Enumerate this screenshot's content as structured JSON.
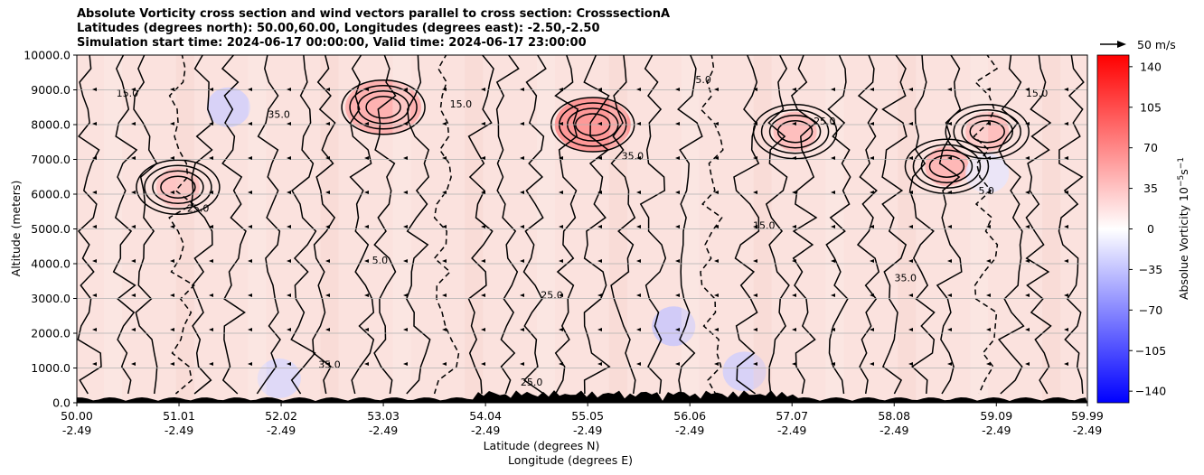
{
  "chart_data": {
    "type": "heatmap",
    "title": [
      "Absolute Vorticity cross section and wind vectors parallel to cross section: CrosssectionA",
      "Latitudes (degrees north): 50.00,60.00, Longitudes (degrees east): -2.50,-2.50",
      "Simulation start time: 2024-06-17 00:00:00, Valid time: 2024-06-17 23:00:00"
    ],
    "ylabel": "Altitude (meters)",
    "xlabel": [
      "Latitude (degrees N)",
      "Longitude (degrees E)"
    ],
    "ylim": [
      0,
      10000
    ],
    "yticks": [
      "0.0",
      "1000.0",
      "2000.0",
      "3000.0",
      "4000.0",
      "5000.0",
      "6000.0",
      "7000.0",
      "8000.0",
      "9000.0",
      "10000.0"
    ],
    "xlim": [
      50.0,
      59.99
    ],
    "xticks": [
      {
        "lat": "50.00",
        "lon": "-2.49"
      },
      {
        "lat": "51.01",
        "lon": "-2.49"
      },
      {
        "lat": "52.02",
        "lon": "-2.49"
      },
      {
        "lat": "53.03",
        "lon": "-2.49"
      },
      {
        "lat": "54.04",
        "lon": "-2.49"
      },
      {
        "lat": "55.05",
        "lon": "-2.49"
      },
      {
        "lat": "56.06",
        "lon": "-2.49"
      },
      {
        "lat": "57.07",
        "lon": "-2.49"
      },
      {
        "lat": "58.08",
        "lon": "-2.49"
      },
      {
        "lat": "59.09",
        "lon": "-2.49"
      },
      {
        "lat": "59.99",
        "lon": "-2.49"
      }
    ],
    "grid": "horizontal",
    "colorbar": {
      "label": "Absolue Vorticity 10",
      "label_units": "−5",
      "label_suffix": "s",
      "label_suffix_exp": "−1",
      "range": [
        -150,
        150
      ],
      "ticks": [
        "140",
        "105",
        "70",
        "35",
        "0",
        "−35",
        "−70",
        "−105",
        "−140"
      ],
      "colors": [
        "#0000ff",
        "#ffffff",
        "#ff0000"
      ]
    },
    "quiver_key": "50 m/s",
    "contour_labels": [
      "15.0",
      "25.0",
      "35.0",
      "5.0"
    ],
    "vorticity_field": [
      {
        "lat": 51.0,
        "alt": 6200,
        "value": 40
      },
      {
        "lat": 53.03,
        "alt": 8500,
        "value": 55
      },
      {
        "lat": 55.1,
        "alt": 8000,
        "value": 75
      },
      {
        "lat": 57.1,
        "alt": 7800,
        "value": 45
      },
      {
        "lat": 58.6,
        "alt": 6800,
        "value": 50
      },
      {
        "lat": 59.0,
        "alt": 7800,
        "value": 45
      },
      {
        "lat": 59.0,
        "alt": 6600,
        "value": -15
      },
      {
        "lat": 55.9,
        "alt": 2200,
        "value": -35
      },
      {
        "lat": 52.0,
        "alt": 700,
        "value": -25
      },
      {
        "lat": 56.6,
        "alt": 900,
        "value": -30
      },
      {
        "lat": 51.5,
        "alt": 8500,
        "value": -30
      }
    ]
  }
}
